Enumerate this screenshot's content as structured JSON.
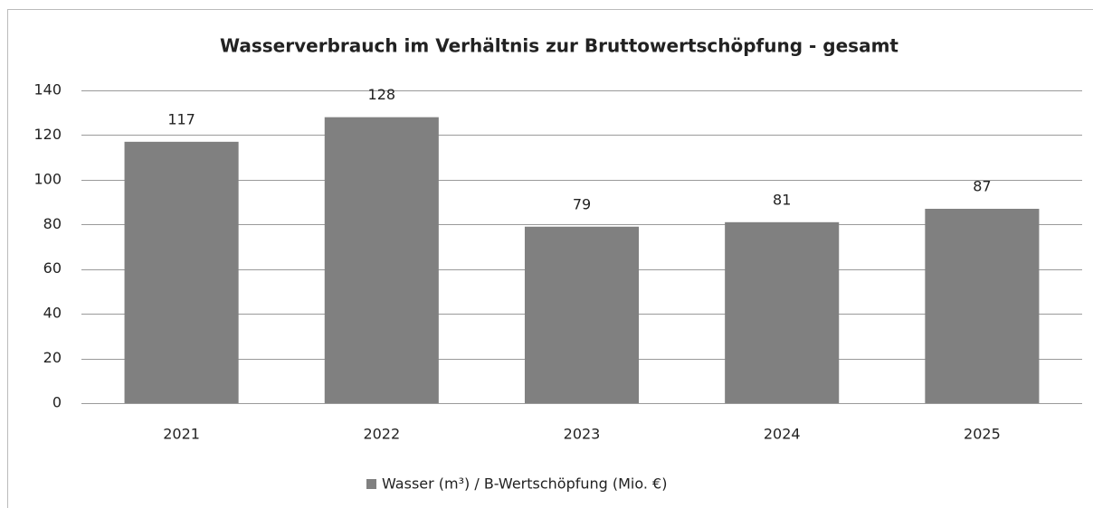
{
  "chart_data": {
    "type": "bar",
    "title": "Wasserverbrauch im Verhältnis zur Bruttowertschöpfung - gesamt",
    "categories": [
      "2021",
      "2022",
      "2023",
      "2024",
      "2025"
    ],
    "series": [
      {
        "name": "Wasser (m³) / B-Wertschöpfung (Mio. €)",
        "color": "#808080",
        "values": [
          117,
          128,
          79,
          81,
          87
        ]
      }
    ],
    "ylim": [
      0,
      140
    ],
    "yticks": [
      0,
      20,
      40,
      60,
      80,
      100,
      120,
      140
    ],
    "grid": true,
    "legend": "bottom"
  }
}
